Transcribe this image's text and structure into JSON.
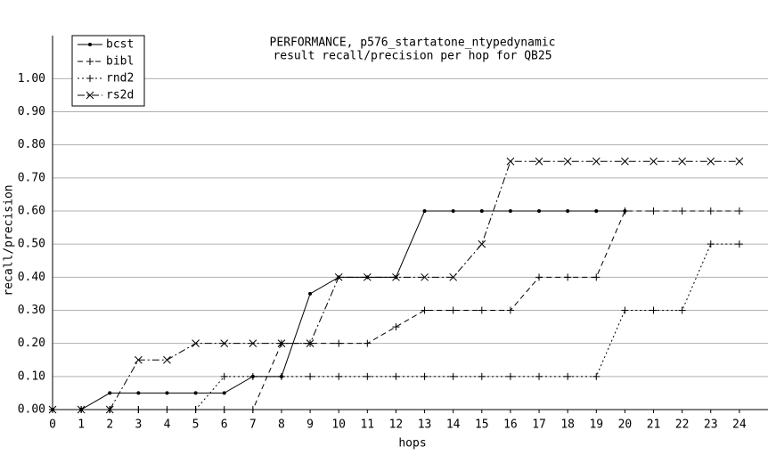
{
  "chart_data": {
    "type": "line",
    "title": "PERFORMANCE, p576_startatone_ntypedynamic",
    "subtitle": "result recall/precision per hop for QB25",
    "x_label": "hops",
    "y_label": "recall/precision",
    "x": [
      0,
      1,
      2,
      3,
      4,
      5,
      6,
      7,
      8,
      9,
      10,
      11,
      12,
      13,
      14,
      15,
      16,
      17,
      18,
      19,
      20,
      21,
      22,
      23,
      24
    ],
    "xlim": [
      0,
      25
    ],
    "xticks": [
      0,
      1,
      2,
      3,
      4,
      5,
      6,
      7,
      8,
      9,
      10,
      11,
      12,
      13,
      14,
      15,
      16,
      17,
      18,
      19,
      20,
      21,
      22,
      23,
      24
    ],
    "ylim": [
      0,
      1.13
    ],
    "yticks": [
      {
        "value": 0,
        "label": "0.00"
      },
      {
        "value": 0.1,
        "label": "0.10"
      },
      {
        "value": 0.2,
        "label": "0.20"
      },
      {
        "value": 0.3,
        "label": "0.30"
      },
      {
        "value": 0.4,
        "label": "0.40"
      },
      {
        "value": 0.5,
        "label": "0.50"
      },
      {
        "value": 0.6,
        "label": "0.60"
      },
      {
        "value": 0.7,
        "label": "0.70"
      },
      {
        "value": 0.8,
        "label": "0.80"
      },
      {
        "value": 0.9,
        "label": "0.90"
      },
      {
        "value": 1.0,
        "label": "1.00"
      }
    ],
    "grid": true,
    "legend": "top-left",
    "series": [
      {
        "name": "bcst",
        "color": "#000000",
        "marker": "dot",
        "dash": "solid",
        "values": [
          0,
          0,
          0.05,
          0.05,
          0.05,
          0.05,
          0.05,
          0.1,
          0.1,
          0.35,
          0.4,
          0.4,
          0.4,
          0.6,
          0.6,
          0.6,
          0.6,
          0.6,
          0.6,
          0.6,
          0.6,
          null,
          null,
          null,
          null
        ]
      },
      {
        "name": "bibl",
        "color": "#000000",
        "marker": "plus",
        "dash": "dashed",
        "values": [
          0,
          0,
          0,
          0,
          0,
          0,
          0,
          0,
          0.2,
          0.2,
          0.2,
          0.2,
          0.25,
          0.3,
          0.3,
          0.3,
          0.3,
          0.4,
          0.4,
          0.4,
          0.6,
          0.6,
          0.6,
          0.6,
          0.6
        ]
      },
      {
        "name": "rnd2",
        "color": "#000000",
        "marker": "plus",
        "dash": "dotted",
        "values": [
          0,
          0,
          0,
          0,
          0,
          0,
          0.1,
          0.1,
          0.1,
          0.1,
          0.1,
          0.1,
          0.1,
          0.1,
          0.1,
          0.1,
          0.1,
          0.1,
          0.1,
          0.1,
          0.3,
          0.3,
          0.3,
          0.5,
          0.5
        ]
      },
      {
        "name": "rs2d",
        "color": "#000000",
        "marker": "x",
        "dash": "dashdot",
        "values": [
          0,
          0,
          0,
          0.15,
          0.15,
          0.2,
          0.2,
          0.2,
          0.2,
          0.2,
          0.4,
          0.4,
          0.4,
          0.4,
          0.4,
          0.5,
          0.75,
          0.75,
          0.75,
          0.75,
          0.75,
          0.75,
          0.75,
          0.75,
          0.75
        ]
      }
    ]
  }
}
